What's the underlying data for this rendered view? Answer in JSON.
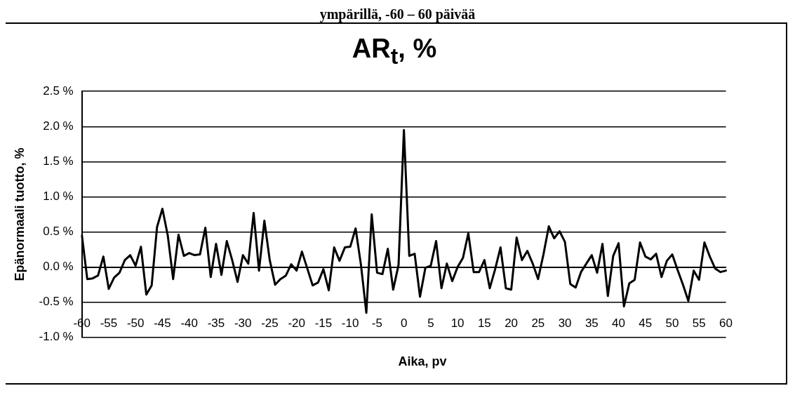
{
  "chart_data": {
    "type": "line",
    "title": "AR$_{t}$, %",
    "annotations": [
      "ympärillä, -60 – 60 päivää"
    ],
    "xlabel": "Aika, pv",
    "ylabel": "Epänormaali tuotto, %",
    "categories": [
      "-60",
      null,
      null,
      null,
      null,
      "-55",
      null,
      null,
      null,
      null,
      "-50",
      null,
      null,
      null,
      null,
      "-45",
      null,
      null,
      null,
      null,
      "-40",
      null,
      null,
      null,
      null,
      "-35",
      null,
      null,
      null,
      null,
      "-30",
      null,
      null,
      null,
      null,
      "-25",
      null,
      null,
      null,
      null,
      "-20",
      null,
      null,
      null,
      null,
      "-15",
      null,
      null,
      null,
      null,
      "-10",
      null,
      null,
      null,
      null,
      "-5",
      null,
      null,
      null,
      null,
      "0",
      null,
      null,
      null,
      null,
      "5",
      null,
      null,
      null,
      null,
      "10",
      null,
      null,
      null,
      null,
      "15",
      null,
      null,
      null,
      null,
      "20",
      null,
      null,
      null,
      null,
      "25",
      null,
      null,
      null,
      null,
      "30",
      null,
      null,
      null,
      null,
      "35",
      null,
      null,
      null,
      null,
      "40",
      null,
      null,
      null,
      null,
      "45",
      null,
      null,
      null,
      null,
      "50",
      null,
      null,
      null,
      null,
      "55",
      null,
      null,
      null,
      null,
      "60"
    ],
    "series": [
      {
        "color": "#000000",
        "values": [
          0.45,
          -0.17,
          -0.16,
          -0.12,
          0.15,
          -0.31,
          -0.15,
          -0.08,
          0.1,
          0.17,
          0.02,
          0.29,
          -0.39,
          -0.26,
          0.57,
          0.83,
          0.45,
          -0.17,
          0.46,
          0.16,
          0.2,
          0.17,
          0.18,
          0.56,
          -0.14,
          0.33,
          -0.11,
          0.37,
          0.1,
          -0.21,
          0.17,
          0.05,
          0.77,
          -0.05,
          0.66,
          0.1,
          -0.25,
          -0.17,
          -0.12,
          0.04,
          -0.05,
          0.22,
          -0.02,
          -0.26,
          -0.22,
          -0.03,
          -0.33,
          0.28,
          0.09,
          0.28,
          0.29,
          0.55,
          0.03,
          -0.65,
          0.75,
          -0.08,
          -0.1,
          0.26,
          -0.32,
          0.03,
          1.95,
          0.16,
          0.19,
          -0.42,
          -0.01,
          0.02,
          0.37,
          -0.3,
          0.05,
          -0.2,
          0.0,
          0.13,
          0.48,
          -0.07,
          -0.07,
          0.1,
          -0.3,
          -0.03,
          0.28,
          -0.3,
          -0.32,
          0.42,
          0.1,
          0.23,
          0.05,
          -0.17,
          0.18,
          0.58,
          0.41,
          0.51,
          0.36,
          -0.24,
          -0.29,
          -0.07,
          0.05,
          0.17,
          -0.08,
          0.33,
          -0.41,
          0.16,
          0.34,
          -0.56,
          -0.23,
          -0.18,
          0.35,
          0.15,
          0.11,
          0.19,
          -0.14,
          0.09,
          0.18,
          -0.04,
          -0.25,
          -0.48,
          -0.05,
          -0.18,
          0.35,
          0.15,
          -0.02,
          -0.07,
          -0.05
        ]
      }
    ],
    "ylim": [
      -1.0,
      2.5
    ],
    "yticks": [
      {
        "value": -1.0,
        "label": "-1.0 %"
      },
      {
        "value": -0.5,
        "label": "-0.5 %"
      },
      {
        "value": 0.0,
        "label": "0.0 %"
      },
      {
        "value": 0.5,
        "label": "0.5 %"
      },
      {
        "value": 1.0,
        "label": "1.0 %"
      },
      {
        "value": 1.5,
        "label": "1.5 %"
      },
      {
        "value": 2.0,
        "label": "2.0 %"
      },
      {
        "value": 2.5,
        "label": "2.5 %"
      }
    ],
    "grid": "y",
    "legend": false,
    "marker": "none",
    "line_style": "solid"
  }
}
